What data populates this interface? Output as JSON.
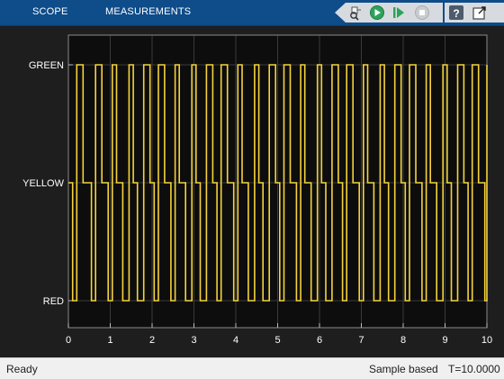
{
  "tabs": [
    {
      "label": "SCOPE"
    },
    {
      "label": "MEASUREMENTS"
    }
  ],
  "toolbar": {
    "buttons": [
      {
        "name": "highlight-block-icon"
      },
      {
        "name": "run-icon"
      },
      {
        "name": "step-forward-icon"
      },
      {
        "name": "stop-icon"
      },
      {
        "name": "help-icon"
      },
      {
        "name": "undock-icon"
      }
    ]
  },
  "status": {
    "ready": "Ready",
    "mode": "Sample based",
    "time": "T=10.0000"
  },
  "colors": {
    "toolstrip": "#0e4c8a",
    "axes_bg": "#0d0d0d",
    "figure_bg": "#1e1e1e",
    "signal": "#f5d33b",
    "grid": "#3a3a3a",
    "axis_text": "#ffffff"
  },
  "chart_data": {
    "type": "line",
    "title": "",
    "xlabel": "",
    "ylabel": "",
    "xlim": [
      0,
      10
    ],
    "xticks": [
      0,
      1,
      2,
      3,
      4,
      5,
      6,
      7,
      8,
      9,
      10
    ],
    "categories": [
      "RED",
      "YELLOW",
      "GREEN"
    ],
    "grid": true,
    "legend": "none",
    "series": [
      {
        "step": "post",
        "x": [
          0,
          0.1,
          0.2,
          0.35,
          0.55,
          0.65,
          0.8,
          0.95,
          1.05,
          1.15,
          1.3,
          1.45,
          1.55,
          1.65,
          1.8,
          1.95,
          2.05,
          2.15,
          2.3,
          2.45,
          2.55,
          2.65,
          2.8,
          2.95,
          3.05,
          3.15,
          3.3,
          3.45,
          3.55,
          3.65,
          3.8,
          3.95,
          4.05,
          4.15,
          4.3,
          4.45,
          4.55,
          4.65,
          4.8,
          4.95,
          5.05,
          5.15,
          5.3,
          5.45,
          5.55,
          5.65,
          5.8,
          5.95,
          6.05,
          6.15,
          6.3,
          6.45,
          6.55,
          6.65,
          6.8,
          6.95,
          7.05,
          7.15,
          7.3,
          7.45,
          7.55,
          7.65,
          7.8,
          7.95,
          8.05,
          8.15,
          8.3,
          8.45,
          8.55,
          8.65,
          8.8,
          8.95,
          9.05,
          9.15,
          9.3,
          9.45,
          9.55,
          9.65,
          9.8,
          9.95,
          10
        ],
        "y": [
          1,
          0,
          2,
          1,
          0,
          2,
          1,
          0,
          2,
          1,
          0,
          2,
          1,
          0,
          2,
          1,
          0,
          2,
          1,
          0,
          2,
          1,
          0,
          2,
          1,
          0,
          2,
          1,
          0,
          2,
          1,
          0,
          2,
          1,
          0,
          2,
          1,
          0,
          2,
          1,
          0,
          2,
          1,
          0,
          2,
          1,
          0,
          2,
          1,
          0,
          2,
          1,
          0,
          2,
          1,
          0,
          2,
          1,
          0,
          2,
          1,
          0,
          2,
          1,
          0,
          2,
          1,
          0,
          2,
          1,
          0,
          2,
          1,
          0,
          2,
          1,
          0,
          2,
          1,
          0,
          2
        ]
      }
    ]
  }
}
